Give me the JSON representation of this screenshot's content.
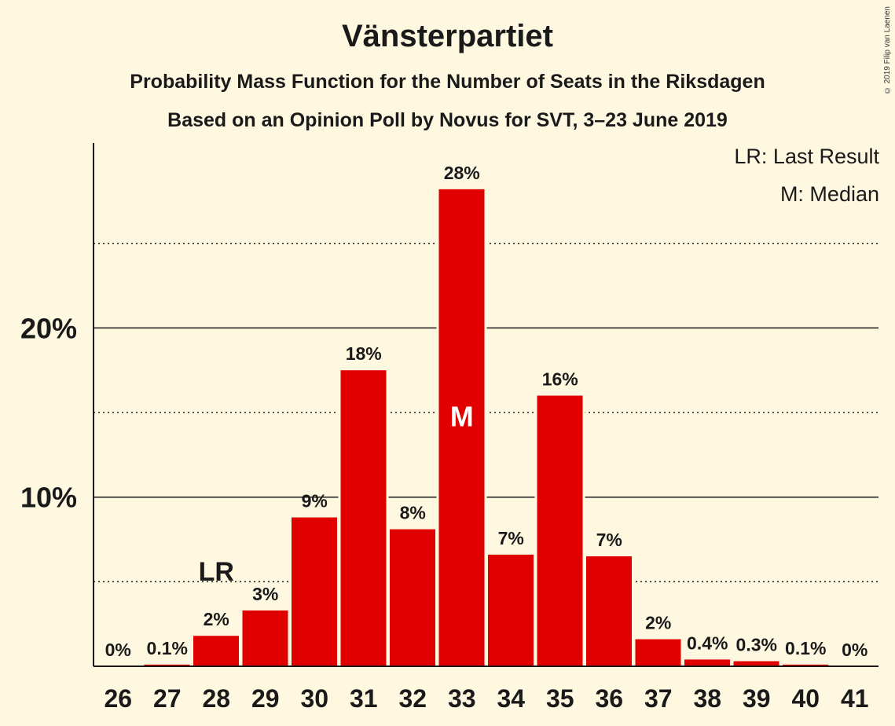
{
  "chart_data": {
    "type": "bar",
    "title": "Vänsterpartiet",
    "subtitle": "Probability Mass Function for the Number of Seats in the Riksdagen",
    "subtitle2": "Based on an Opinion Poll by Novus for SVT, 3–23 June 2019",
    "categories": [
      "26",
      "27",
      "28",
      "29",
      "30",
      "31",
      "32",
      "33",
      "34",
      "35",
      "36",
      "37",
      "38",
      "39",
      "40",
      "41"
    ],
    "values": [
      0,
      0.1,
      1.8,
      3.3,
      8.8,
      17.5,
      8.1,
      28.2,
      6.6,
      16.0,
      6.5,
      1.6,
      0.4,
      0.3,
      0.1,
      0
    ],
    "data_labels": [
      "0%",
      "0.1%",
      "2%",
      "3%",
      "9%",
      "18%",
      "8%",
      "28%",
      "7%",
      "16%",
      "7%",
      "2%",
      "0.4%",
      "0.3%",
      "0.1%",
      "0%"
    ],
    "ylim": [
      0,
      30
    ],
    "y_ticks": [
      10,
      20
    ],
    "y_tick_labels": [
      "10%",
      "20%"
    ],
    "y_minor_ticks": [
      5,
      15,
      25
    ],
    "bar_color": "#e00000",
    "last_result": {
      "category": "28",
      "label": "LR"
    },
    "median": {
      "category": "33",
      "label": "M"
    },
    "legend": [
      "LR: Last Result",
      "M: Median"
    ],
    "legend_position": "top-right",
    "copyright": "© 2019 Filip van Laenen"
  }
}
